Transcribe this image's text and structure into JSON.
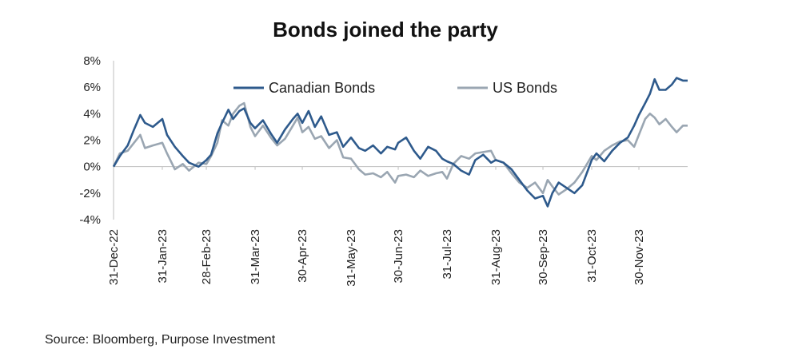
{
  "chart_data": {
    "type": "line",
    "title": "Bonds joined the party",
    "xlabel": "",
    "ylabel": "",
    "x_tick_labels": [
      "31-Dec-22",
      "31-Jan-23",
      "28-Feb-23",
      "31-Mar-23",
      "30-Apr-23",
      "31-May-23",
      "30-Jun-23",
      "31-Jul-23",
      "31-Aug-23",
      "30-Sep-23",
      "31-Oct-23",
      "30-Nov-23"
    ],
    "x_range": [
      "2022-12-31",
      "2023-12-31"
    ],
    "y_tick_labels": [
      "8%",
      "6%",
      "4%",
      "2%",
      "0%",
      "-2%",
      "-4%"
    ],
    "ylim": [
      -4,
      8
    ],
    "y_unit": "%",
    "grid": false,
    "legend_position": "top",
    "series": [
      {
        "name": "Canadian Bonds",
        "color": "#2e5a8c",
        "points": [
          [
            "2022-12-31",
            0.0
          ],
          [
            "2023-01-04",
            0.8
          ],
          [
            "2023-01-09",
            1.6
          ],
          [
            "2023-01-13",
            2.8
          ],
          [
            "2023-01-17",
            3.9
          ],
          [
            "2023-01-20",
            3.3
          ],
          [
            "2023-01-25",
            3.0
          ],
          [
            "2023-01-31",
            3.6
          ],
          [
            "2023-02-03",
            2.4
          ],
          [
            "2023-02-08",
            1.5
          ],
          [
            "2023-02-13",
            0.8
          ],
          [
            "2023-02-17",
            0.3
          ],
          [
            "2023-02-23",
            0.0
          ],
          [
            "2023-02-28",
            0.5
          ],
          [
            "2023-03-03",
            0.9
          ],
          [
            "2023-03-07",
            2.5
          ],
          [
            "2023-03-10",
            3.3
          ],
          [
            "2023-03-14",
            4.3
          ],
          [
            "2023-03-17",
            3.6
          ],
          [
            "2023-03-21",
            4.2
          ],
          [
            "2023-03-24",
            4.4
          ],
          [
            "2023-03-28",
            3.3
          ],
          [
            "2023-03-31",
            2.9
          ],
          [
            "2023-04-05",
            3.5
          ],
          [
            "2023-04-10",
            2.5
          ],
          [
            "2023-04-14",
            1.8
          ],
          [
            "2023-04-19",
            2.8
          ],
          [
            "2023-04-24",
            3.6
          ],
          [
            "2023-04-27",
            4.0
          ],
          [
            "2023-04-30",
            3.3
          ],
          [
            "2023-05-04",
            4.2
          ],
          [
            "2023-05-08",
            3.0
          ],
          [
            "2023-05-12",
            3.8
          ],
          [
            "2023-05-17",
            2.4
          ],
          [
            "2023-05-22",
            2.6
          ],
          [
            "2023-05-26",
            1.5
          ],
          [
            "2023-05-31",
            2.2
          ],
          [
            "2023-06-05",
            1.4
          ],
          [
            "2023-06-09",
            1.2
          ],
          [
            "2023-06-14",
            1.6
          ],
          [
            "2023-06-19",
            1.0
          ],
          [
            "2023-06-23",
            1.5
          ],
          [
            "2023-06-28",
            1.3
          ],
          [
            "2023-06-30",
            1.8
          ],
          [
            "2023-07-05",
            2.2
          ],
          [
            "2023-07-10",
            1.2
          ],
          [
            "2023-07-14",
            0.6
          ],
          [
            "2023-07-19",
            1.5
          ],
          [
            "2023-07-24",
            1.2
          ],
          [
            "2023-07-28",
            0.6
          ],
          [
            "2023-07-31",
            0.4
          ],
          [
            "2023-08-04",
            0.2
          ],
          [
            "2023-08-09",
            -0.3
          ],
          [
            "2023-08-14",
            -0.6
          ],
          [
            "2023-08-18",
            0.5
          ],
          [
            "2023-08-23",
            0.9
          ],
          [
            "2023-08-28",
            0.3
          ],
          [
            "2023-08-31",
            0.5
          ],
          [
            "2023-09-05",
            0.3
          ],
          [
            "2023-09-10",
            -0.2
          ],
          [
            "2023-09-15",
            -1.0
          ],
          [
            "2023-09-20",
            -1.8
          ],
          [
            "2023-09-25",
            -2.4
          ],
          [
            "2023-09-30",
            -2.2
          ],
          [
            "2023-10-03",
            -3.0
          ],
          [
            "2023-10-06",
            -2.0
          ],
          [
            "2023-10-10",
            -1.2
          ],
          [
            "2023-10-15",
            -1.6
          ],
          [
            "2023-10-20",
            -2.0
          ],
          [
            "2023-10-25",
            -1.4
          ],
          [
            "2023-10-31",
            0.5
          ],
          [
            "2023-11-03",
            1.0
          ],
          [
            "2023-11-08",
            0.4
          ],
          [
            "2023-11-13",
            1.2
          ],
          [
            "2023-11-18",
            1.8
          ],
          [
            "2023-11-23",
            2.2
          ],
          [
            "2023-11-27",
            3.1
          ],
          [
            "2023-11-30",
            3.9
          ],
          [
            "2023-12-04",
            4.8
          ],
          [
            "2023-12-07",
            5.5
          ],
          [
            "2023-12-10",
            6.6
          ],
          [
            "2023-12-13",
            5.8
          ],
          [
            "2023-12-17",
            5.8
          ],
          [
            "2023-12-21",
            6.2
          ],
          [
            "2023-12-24",
            6.7
          ],
          [
            "2023-12-28",
            6.5
          ],
          [
            "2023-12-31",
            6.5
          ]
        ]
      },
      {
        "name": "US Bonds",
        "color": "#9aa6b2",
        "points": [
          [
            "2022-12-31",
            0.0
          ],
          [
            "2023-01-04",
            1.0
          ],
          [
            "2023-01-09",
            1.2
          ],
          [
            "2023-01-13",
            1.8
          ],
          [
            "2023-01-17",
            2.4
          ],
          [
            "2023-01-20",
            1.4
          ],
          [
            "2023-01-25",
            1.6
          ],
          [
            "2023-01-31",
            1.8
          ],
          [
            "2023-02-03",
            1.0
          ],
          [
            "2023-02-08",
            -0.2
          ],
          [
            "2023-02-13",
            0.2
          ],
          [
            "2023-02-17",
            -0.3
          ],
          [
            "2023-02-23",
            0.3
          ],
          [
            "2023-02-28",
            0.2
          ],
          [
            "2023-03-03",
            0.8
          ],
          [
            "2023-03-07",
            1.8
          ],
          [
            "2023-03-10",
            3.5
          ],
          [
            "2023-03-14",
            3.1
          ],
          [
            "2023-03-17",
            4.0
          ],
          [
            "2023-03-21",
            4.6
          ],
          [
            "2023-03-24",
            4.8
          ],
          [
            "2023-03-28",
            3.0
          ],
          [
            "2023-03-31",
            2.3
          ],
          [
            "2023-04-05",
            3.1
          ],
          [
            "2023-04-10",
            2.2
          ],
          [
            "2023-04-14",
            1.6
          ],
          [
            "2023-04-19",
            2.1
          ],
          [
            "2023-04-24",
            3.1
          ],
          [
            "2023-04-27",
            3.7
          ],
          [
            "2023-04-30",
            2.6
          ],
          [
            "2023-05-04",
            3.0
          ],
          [
            "2023-05-08",
            2.1
          ],
          [
            "2023-05-12",
            2.3
          ],
          [
            "2023-05-17",
            1.4
          ],
          [
            "2023-05-22",
            2.0
          ],
          [
            "2023-05-26",
            0.7
          ],
          [
            "2023-05-31",
            0.6
          ],
          [
            "2023-06-05",
            -0.2
          ],
          [
            "2023-06-09",
            -0.6
          ],
          [
            "2023-06-14",
            -0.5
          ],
          [
            "2023-06-19",
            -0.8
          ],
          [
            "2023-06-23",
            -0.4
          ],
          [
            "2023-06-28",
            -1.2
          ],
          [
            "2023-06-30",
            -0.7
          ],
          [
            "2023-07-05",
            -0.6
          ],
          [
            "2023-07-10",
            -0.8
          ],
          [
            "2023-07-14",
            -0.3
          ],
          [
            "2023-07-19",
            -0.7
          ],
          [
            "2023-07-24",
            -0.5
          ],
          [
            "2023-07-28",
            -0.4
          ],
          [
            "2023-07-31",
            -0.9
          ],
          [
            "2023-08-04",
            0.2
          ],
          [
            "2023-08-09",
            0.8
          ],
          [
            "2023-08-14",
            0.6
          ],
          [
            "2023-08-18",
            1.0
          ],
          [
            "2023-08-23",
            1.1
          ],
          [
            "2023-08-28",
            1.2
          ],
          [
            "2023-08-31",
            0.5
          ],
          [
            "2023-09-05",
            0.3
          ],
          [
            "2023-09-10",
            -0.5
          ],
          [
            "2023-09-15",
            -1.2
          ],
          [
            "2023-09-20",
            -1.6
          ],
          [
            "2023-09-25",
            -1.2
          ],
          [
            "2023-09-30",
            -2.0
          ],
          [
            "2023-10-03",
            -1.0
          ],
          [
            "2023-10-06",
            -1.5
          ],
          [
            "2023-10-10",
            -2.1
          ],
          [
            "2023-10-15",
            -1.7
          ],
          [
            "2023-10-20",
            -1.2
          ],
          [
            "2023-10-25",
            -0.4
          ],
          [
            "2023-10-31",
            0.8
          ],
          [
            "2023-11-03",
            0.5
          ],
          [
            "2023-11-08",
            1.2
          ],
          [
            "2023-11-13",
            1.6
          ],
          [
            "2023-11-18",
            1.9
          ],
          [
            "2023-11-23",
            2.0
          ],
          [
            "2023-11-27",
            1.5
          ],
          [
            "2023-11-30",
            2.4
          ],
          [
            "2023-12-04",
            3.6
          ],
          [
            "2023-12-07",
            4.0
          ],
          [
            "2023-12-10",
            3.7
          ],
          [
            "2023-12-13",
            3.2
          ],
          [
            "2023-12-17",
            3.6
          ],
          [
            "2023-12-21",
            3.0
          ],
          [
            "2023-12-24",
            2.6
          ],
          [
            "2023-12-28",
            3.1
          ],
          [
            "2023-12-31",
            3.1
          ]
        ]
      }
    ]
  },
  "footer": {
    "source": "Source: Bloomberg, Purpose Investment"
  }
}
